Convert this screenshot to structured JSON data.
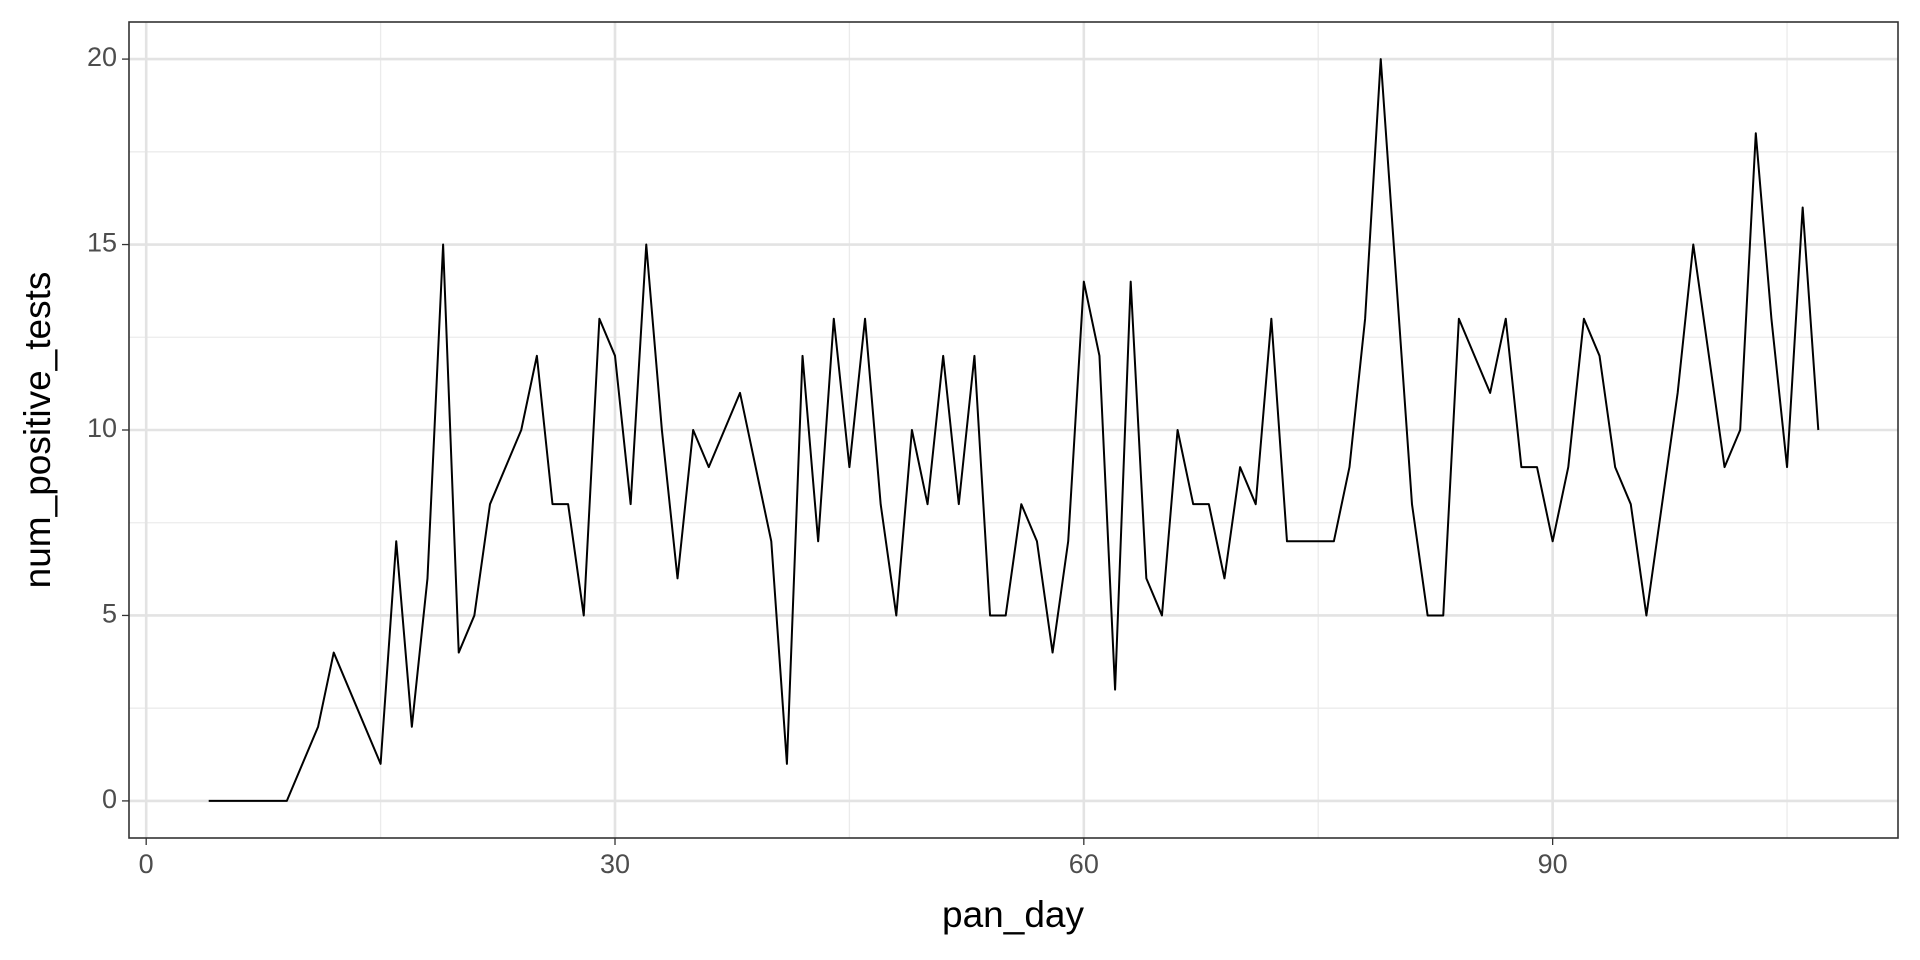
{
  "chart_data": {
    "type": "line",
    "x_label": "pan_day",
    "y_label": "num_positive_tests",
    "x": [
      4,
      9,
      11,
      12,
      15,
      16,
      17,
      18,
      19,
      20,
      21,
      22,
      24,
      25,
      26,
      27,
      28,
      29,
      30,
      31,
      32,
      33,
      34,
      35,
      36,
      38,
      40,
      41,
      42,
      43,
      44,
      45,
      46,
      47,
      48,
      49,
      50,
      51,
      52,
      53,
      54,
      55,
      56,
      57,
      58,
      59,
      60,
      61,
      62,
      63,
      64,
      65,
      66,
      67,
      68,
      69,
      70,
      71,
      72,
      73,
      76,
      77,
      78,
      79,
      80,
      81,
      82,
      83,
      84,
      86,
      87,
      88,
      89,
      90,
      91,
      92,
      93,
      94,
      95,
      96,
      98,
      99,
      101,
      102,
      103,
      104,
      105,
      106,
      107
    ],
    "y": [
      0,
      0,
      2,
      4,
      1,
      7,
      2,
      6,
      15,
      4,
      5,
      8,
      10,
      12,
      8,
      8,
      5,
      13,
      12,
      8,
      15,
      10,
      6,
      10,
      9,
      11,
      7,
      1,
      12,
      7,
      13,
      9,
      13,
      8,
      5,
      10,
      8,
      12,
      8,
      12,
      5,
      5,
      8,
      7,
      4,
      7,
      14,
      12,
      3,
      14,
      6,
      5,
      10,
      8,
      8,
      6,
      9,
      8,
      13,
      7,
      7,
      9,
      13,
      20,
      14,
      8,
      5,
      5,
      13,
      11,
      13,
      9,
      9,
      7,
      9,
      13,
      12,
      9,
      8,
      5,
      11,
      15,
      9,
      10,
      18,
      13,
      9,
      16,
      10
    ],
    "color": "#000000",
    "xlim": [
      -1.1,
      112.1
    ],
    "ylim": [
      -1,
      21
    ],
    "xticks": [
      0,
      30,
      60,
      90
    ],
    "yticks": [
      0,
      5,
      10,
      15,
      20
    ],
    "x_minor_grid": [
      15,
      45,
      75,
      105
    ],
    "y_minor_grid": [
      2.5,
      7.5,
      12.5,
      17.5
    ],
    "grid": true
  }
}
